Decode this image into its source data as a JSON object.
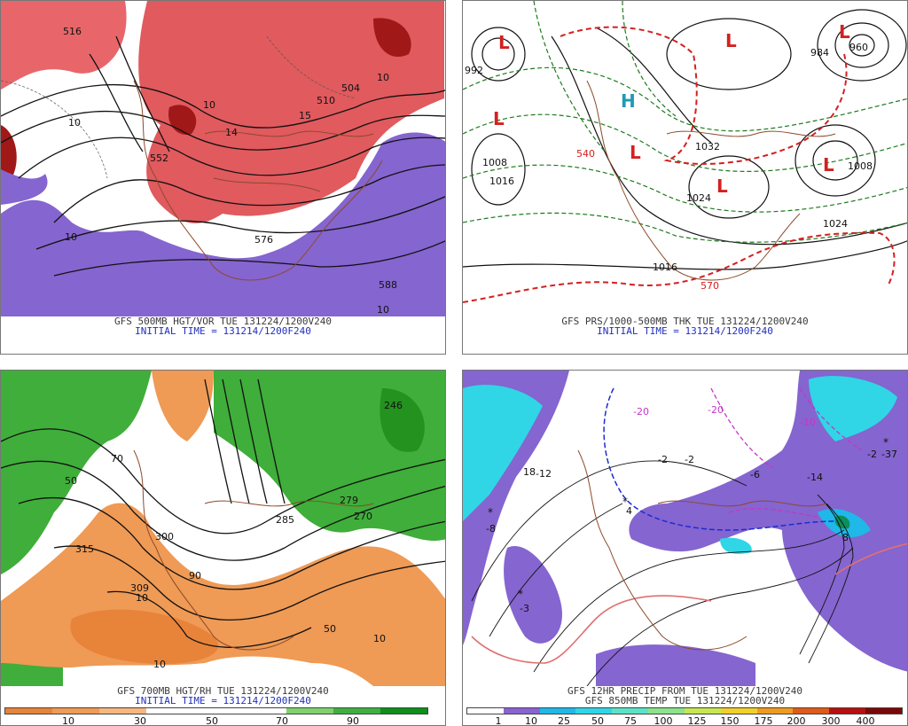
{
  "panels": {
    "tl": {
      "caption1": "GFS 500MB HGT/VOR TUE 131224/1200V240",
      "caption2": "INITIAL TIME = 131214/1200F240",
      "contour_labels": [
        "516",
        "552",
        "576",
        "588",
        "504",
        "510",
        "10",
        "15",
        "14",
        "10",
        "10",
        "10",
        "10"
      ]
    },
    "tr": {
      "caption1": "GFS PRS/1000-500MB THK TUE 131224/1200V240",
      "caption2": "INITIAL TIME = 131214/1200F240",
      "contour_labels": [
        "992",
        "1008",
        "1016",
        "1032",
        "1024",
        "1024",
        "1016",
        "1008",
        "570",
        "540",
        "960",
        "984"
      ],
      "low_marker": "L",
      "high_marker": "H"
    },
    "bl": {
      "caption1": "GFS 700MB HGT/RH TUE 131224/1200V240",
      "caption2": "INITIAL TIME = 131214/1200F240",
      "contour_labels": [
        "315",
        "309",
        "300",
        "285",
        "279",
        "270",
        "246",
        "90",
        "50",
        "50",
        "10",
        "10",
        "10",
        "70"
      ],
      "colorbar_ticks": [
        "10",
        "30",
        "50",
        "70",
        "90"
      ],
      "colorbar_colors": [
        "#e8833a",
        "#ef9a55",
        "#f5b77f",
        "#ffffff",
        "#ffffff",
        "#ffffff",
        "#7fd16b",
        "#3fb040",
        "#0d8f18"
      ]
    },
    "br": {
      "caption1": "GFS 12HR PRECIP FROM TUE 131224/1200V240",
      "caption2": "GFS 850MB TEMP TUE 131224/1200V240",
      "contour_labels": [
        "-20",
        "-20",
        "-10",
        "-14",
        "-12",
        "-8",
        "-6",
        "-3",
        "-2",
        "-2",
        "-2",
        "-37",
        "8",
        "4",
        "18"
      ],
      "colorbar_ticks": [
        "1",
        "10",
        "25",
        "50",
        "75",
        "100",
        "125",
        "150",
        "175",
        "200",
        "300",
        "400"
      ],
      "colorbar_colors": [
        "#ffffff",
        "#8a63d2",
        "#1fb8e8",
        "#30d6e6",
        "#5ce3c7",
        "#8be38a",
        "#c8e650",
        "#f1d02a",
        "#f19a20",
        "#e05a18",
        "#b81010",
        "#7a0808"
      ]
    }
  }
}
